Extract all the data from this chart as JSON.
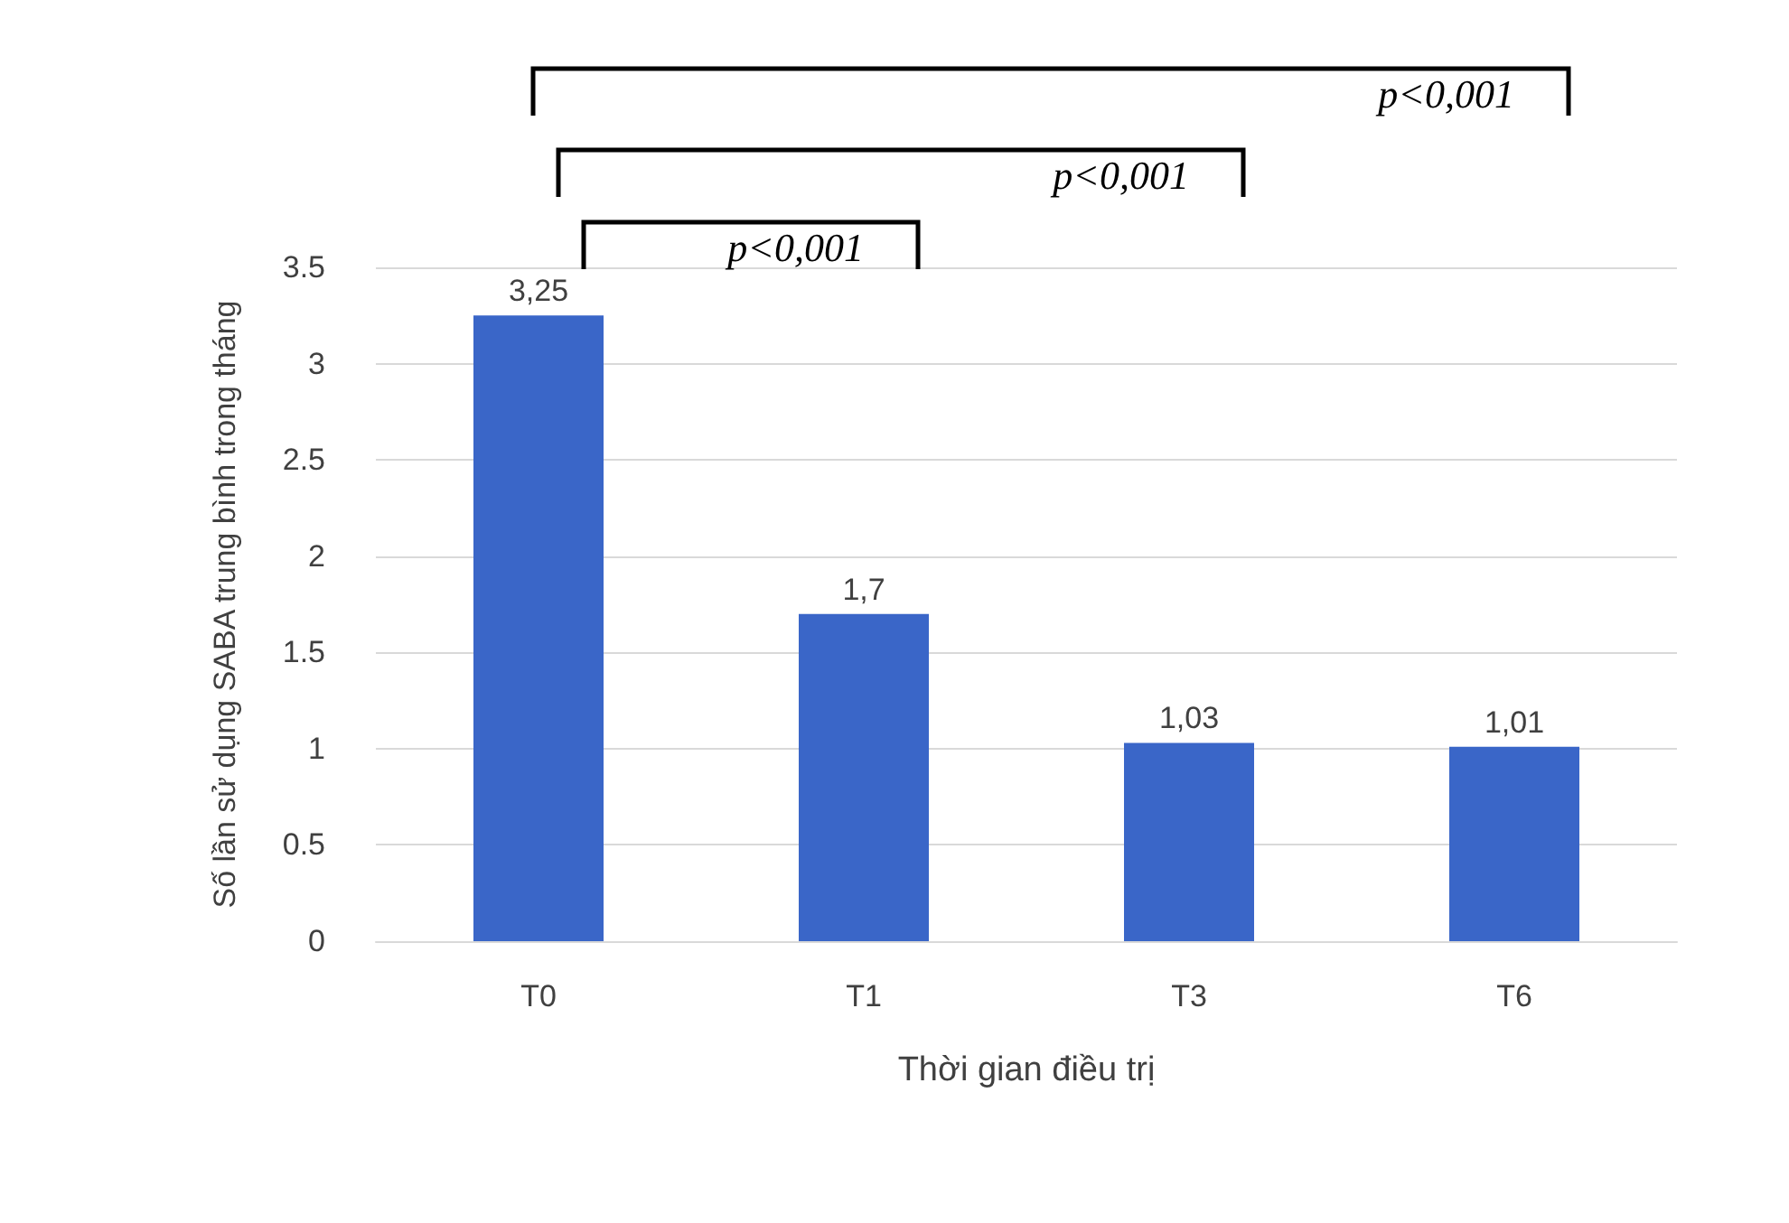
{
  "chart_data": {
    "type": "bar",
    "xlabel": "Thời gian điều trị",
    "ylabel": "Số lần sử dụng SABA trung bình trong tháng",
    "categories": [
      "T0",
      "T1",
      "T3",
      "T6"
    ],
    "values": [
      3.25,
      1.7,
      1.03,
      1.01
    ],
    "value_labels": [
      "3,25",
      "1,7",
      "1,03",
      "1,01"
    ],
    "color": "#3a66c8",
    "ylim": [
      0,
      3.5
    ],
    "yticks": [
      0,
      0.5,
      1,
      1.5,
      2,
      2.5,
      3,
      3.5
    ],
    "grid": "y",
    "annotations": [
      "p<0,001",
      "p<0,001",
      "p<0,001"
    ]
  }
}
